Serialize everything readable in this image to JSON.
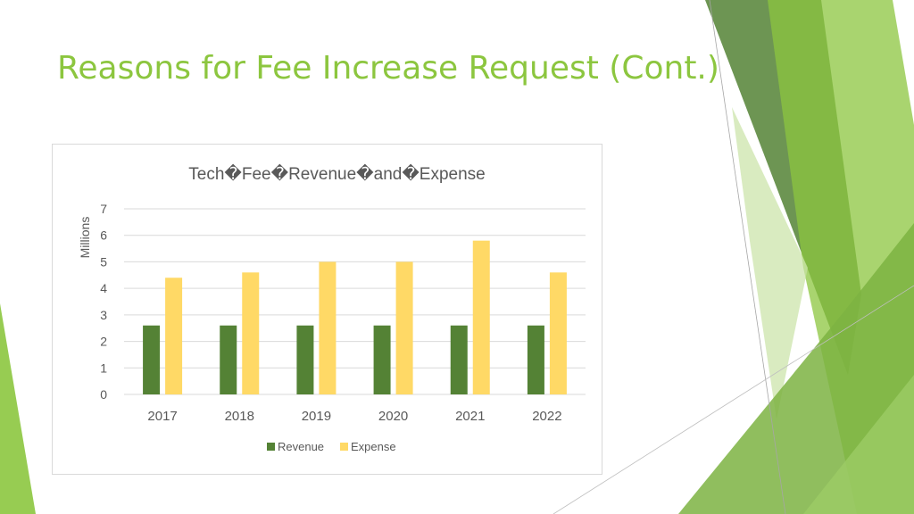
{
  "slide": {
    "title": "Reasons for Fee Increase Request (Cont.)"
  },
  "colors": {
    "title": "#8cc63f",
    "revenue": "#548235",
    "expense": "#ffd966",
    "gridline": "#d9d9d9",
    "axis_text": "#595959"
  },
  "chart_data": {
    "type": "bar",
    "title": "Tech�Fee�Revenue�and�Expense",
    "xlabel": "",
    "ylabel": "Millions",
    "categories": [
      "2017",
      "2018",
      "2019",
      "2020",
      "2021",
      "2022"
    ],
    "series": [
      {
        "name": "Revenue",
        "values": [
          2.6,
          2.6,
          2.6,
          2.6,
          2.6,
          2.6
        ]
      },
      {
        "name": "Expense",
        "values": [
          4.4,
          4.6,
          5.0,
          5.0,
          5.8,
          4.6
        ]
      }
    ],
    "ylim": [
      0,
      7
    ],
    "yticks": [
      "0",
      "1",
      "2",
      "3",
      "4",
      "5",
      "6",
      "7"
    ],
    "grid": true,
    "legend": "bottom"
  }
}
